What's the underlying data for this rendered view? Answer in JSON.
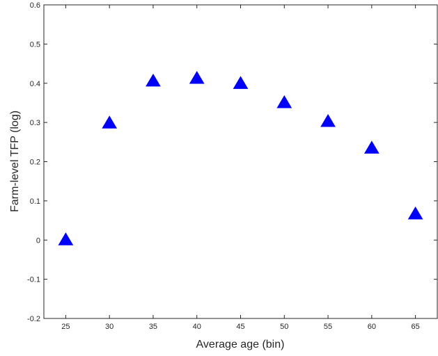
{
  "chart_data": {
    "type": "scatter",
    "title": "",
    "xlabel": "Average age (bin)",
    "ylabel": "Farm-level TFP (log)",
    "xlim": [
      22.5,
      67.5
    ],
    "ylim": [
      -0.2,
      0.6
    ],
    "xticks": [
      25,
      30,
      35,
      40,
      45,
      50,
      55,
      60,
      65
    ],
    "xtick_labels": [
      "25",
      "30",
      "35",
      "40",
      "45",
      "50",
      "55",
      "60",
      "65"
    ],
    "yticks": [
      -0.2,
      -0.1,
      0,
      0.1,
      0.2,
      0.3,
      0.4,
      0.5,
      0.6
    ],
    "ytick_labels": [
      "-0.2",
      "-0.1",
      "0",
      "0.1",
      "0.2",
      "0.3",
      "0.4",
      "0.5",
      "0.6"
    ],
    "grid": false,
    "marker": "triangle",
    "marker_color": "#0000ff",
    "series": [
      {
        "x": [
          25,
          30,
          35,
          40,
          45,
          50,
          55,
          60,
          65
        ],
        "y": [
          0.0,
          0.298,
          0.405,
          0.412,
          0.399,
          0.35,
          0.302,
          0.234,
          0.066
        ]
      }
    ]
  }
}
